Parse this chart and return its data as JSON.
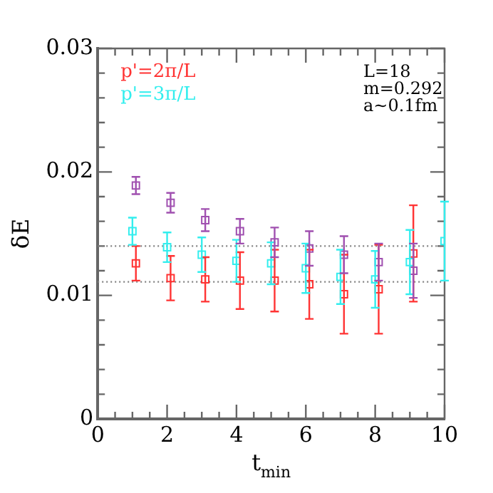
{
  "chart_data": {
    "type": "scatter",
    "xlabel": "t$_{min}$",
    "ylabel": "δE",
    "xlim": [
      0,
      10
    ],
    "ylim": [
      0,
      0.03
    ],
    "xticks": [
      0,
      {
        "value": 0.5,
        "label": null
      },
      2,
      {
        "value": 1.5,
        "label": null
      },
      {
        "value": 1,
        "label": null
      },
      {
        "value": 2.5,
        "label": null
      },
      {
        "value": 3,
        "label": null
      },
      {
        "value": 3.5,
        "label": null
      },
      4,
      {
        "value": 4.5,
        "label": null
      },
      {
        "value": 5,
        "label": null
      },
      {
        "value": 5.5,
        "label": null
      },
      6,
      {
        "value": 6.5,
        "label": null
      },
      {
        "value": 7,
        "label": null
      },
      {
        "value": 7.5,
        "label": null
      },
      8,
      {
        "value": 8.5,
        "label": null
      },
      {
        "value": 9,
        "label": null
      },
      {
        "value": 9.5,
        "label": null
      },
      10
    ],
    "yticks": [
      0,
      {
        "value": 0.002,
        "label": null
      },
      {
        "value": 0.004,
        "label": null
      },
      {
        "value": 0.006,
        "label": null
      },
      {
        "value": 0.008,
        "label": null
      },
      0.01,
      {
        "value": 0.012,
        "label": null
      },
      {
        "value": 0.014,
        "label": null
      },
      {
        "value": 0.016,
        "label": null
      },
      {
        "value": 0.018,
        "label": null
      },
      0.02,
      {
        "value": 0.022,
        "label": null
      },
      {
        "value": 0.024,
        "label": null
      },
      {
        "value": 0.026,
        "label": null
      },
      {
        "value": 0.028,
        "label": null
      },
      0.03
    ],
    "grid": false,
    "legend": "top left",
    "marker": "square",
    "series": [
      {
        "name": "p'=2π/L",
        "color": "#ff3333",
        "x": [
          1.1,
          2.1,
          3.1,
          4.1,
          5.1,
          6.1,
          7.1,
          8.1,
          9.1
        ],
        "values": [
          0.0126,
          0.0114,
          0.0113,
          0.0112,
          0.0112,
          0.0109,
          0.0101,
          0.0105,
          0.0134
        ],
        "errors": [
          0.0014,
          0.0018,
          0.0018,
          0.0023,
          0.0025,
          0.0028,
          0.0032,
          0.0036,
          0.0039
        ]
      },
      {
        "name": "p'=3π/L",
        "color": "#33eeee",
        "x": [
          1,
          2,
          3,
          4,
          5,
          6,
          7,
          8,
          9,
          10
        ],
        "values": [
          0.0152,
          0.0139,
          0.0133,
          0.0128,
          0.0126,
          0.0122,
          0.0115,
          0.0113,
          0.0127,
          0.0144
        ],
        "errors": [
          0.0011,
          0.0012,
          0.0014,
          0.0017,
          0.0017,
          0.002,
          0.0022,
          0.0023,
          0.0026,
          0.0032
        ]
      },
      {
        "color": "#a050b0",
        "x": [
          1.1,
          2.1,
          3.1,
          4.1,
          5.1,
          6.1,
          7.1,
          8.1,
          9.1
        ],
        "values": [
          0.0189,
          0.0175,
          0.0161,
          0.0152,
          0.0143,
          0.0138,
          0.0133,
          0.0127,
          0.012
        ],
        "errors": [
          0.0007,
          0.0008,
          0.0009,
          0.001,
          0.0012,
          0.0014,
          0.0015,
          0.0015,
          0.0022
        ]
      }
    ],
    "ref_lines": [
      {
        "axis": "y",
        "value": 0.014,
        "color": "#808080",
        "line_style": "dotted"
      },
      {
        "axis": "y",
        "value": 0.0111,
        "color": "#808080",
        "line_style": "dotted"
      }
    ],
    "annotations": [
      "L=18",
      "m=0.292",
      "a~0.1fm"
    ]
  }
}
